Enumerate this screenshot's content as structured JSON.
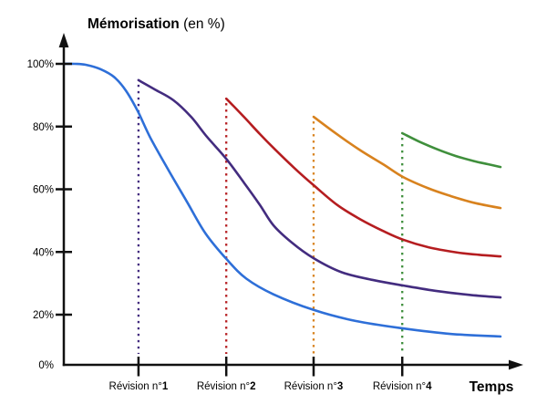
{
  "title": {
    "bold": "Mémorisation",
    "regular": " (en %)"
  },
  "x_axis_label": "Temps",
  "colors": {
    "axis": "#111111",
    "initial": "#2E6FD8",
    "revision1": "#432C7F",
    "revision2": "#B51D20",
    "revision3": "#D8821E",
    "revision4": "#3F8F3C"
  },
  "chart_data": {
    "type": "line",
    "title": "Mémorisation (en %)",
    "xlabel": "Temps",
    "ylabel": "Mémorisation (en %)",
    "ylim": [
      0,
      100
    ],
    "x_note": "axe du temps sans échelle numérique — abscisses normalisées de 0 à 100",
    "grid": false,
    "legend": "none",
    "y_ticks": [
      {
        "label": "100%",
        "value": 100
      },
      {
        "label": "80%",
        "value": 80
      },
      {
        "label": "60%",
        "value": 60
      },
      {
        "label": "40%",
        "value": 40
      },
      {
        "label": "20%",
        "value": 20
      },
      {
        "label": "0%",
        "value": 0
      }
    ],
    "x_ticks": [
      {
        "prefix": "Révision n°",
        "number": "1",
        "t": 17.1
      },
      {
        "prefix": "Révision n°",
        "number": "2",
        "t": 37.2
      },
      {
        "prefix": "Révision n°",
        "number": "3",
        "t": 57.2
      },
      {
        "prefix": "Révision n°",
        "number": "4",
        "t": 77.5
      }
    ],
    "series": [
      {
        "id": "initial-forgetting-curve",
        "color_key": "initial",
        "points": [
          [
            0,
            100
          ],
          [
            2.5,
            100
          ],
          [
            5,
            99.7
          ],
          [
            8.4,
            98.3
          ],
          [
            11.5,
            95.8
          ],
          [
            14.2,
            91.5
          ],
          [
            16.9,
            85
          ],
          [
            19.8,
            76.5
          ],
          [
            24,
            66
          ],
          [
            28.2,
            56
          ],
          [
            32.4,
            46
          ],
          [
            37.4,
            37.5
          ],
          [
            41.8,
            31.5
          ],
          [
            48,
            26.5
          ],
          [
            57.2,
            21.5
          ],
          [
            66.8,
            17.5
          ],
          [
            77.7,
            14.5
          ],
          [
            88.7,
            12.3
          ],
          [
            100,
            11.3
          ]
        ]
      },
      {
        "id": "after-revision-1",
        "color_key": "revision1",
        "points": [
          [
            17.1,
            94.8
          ],
          [
            20.9,
            91.8
          ],
          [
            25.1,
            88.4
          ],
          [
            29.2,
            83
          ],
          [
            32.8,
            76.7
          ],
          [
            37.2,
            69.7
          ],
          [
            41.3,
            62
          ],
          [
            44.9,
            55
          ],
          [
            48,
            48.5
          ],
          [
            52.2,
            43
          ],
          [
            57.2,
            38
          ],
          [
            63.7,
            33.5
          ],
          [
            71,
            31
          ],
          [
            77.7,
            29.3
          ],
          [
            85.6,
            27.5
          ],
          [
            92.9,
            26.3
          ],
          [
            100,
            25.5
          ]
        ]
      },
      {
        "id": "after-revision-2",
        "color_key": "revision2",
        "points": [
          [
            37.2,
            88.9
          ],
          [
            41.3,
            83
          ],
          [
            44.9,
            77.6
          ],
          [
            48,
            73.2
          ],
          [
            52.6,
            67
          ],
          [
            57.2,
            61.3
          ],
          [
            62.6,
            55
          ],
          [
            67.8,
            50.5
          ],
          [
            73.1,
            46.7
          ],
          [
            77.7,
            43.9
          ],
          [
            83.5,
            41.5
          ],
          [
            89.8,
            39.9
          ],
          [
            95,
            39.1
          ],
          [
            100,
            38.6
          ]
        ]
      },
      {
        "id": "after-revision-3",
        "color_key": "revision3",
        "points": [
          [
            57.2,
            83.1
          ],
          [
            62.6,
            77.5
          ],
          [
            67.8,
            72.5
          ],
          [
            73.1,
            68
          ],
          [
            77.7,
            63.9
          ],
          [
            83.5,
            60.3
          ],
          [
            88.7,
            57.8
          ],
          [
            93.9,
            55.7
          ],
          [
            100,
            54
          ]
        ]
      },
      {
        "id": "after-revision-4",
        "color_key": "revision4",
        "points": [
          [
            77.5,
            77.9
          ],
          [
            81.4,
            75.2
          ],
          [
            85.6,
            72.7
          ],
          [
            89.8,
            70.6
          ],
          [
            93.9,
            69
          ],
          [
            97.1,
            68
          ],
          [
            100,
            67.1
          ]
        ]
      }
    ],
    "revision_lines": [
      {
        "t": 17.1,
        "top": 94.8,
        "color_key": "revision1"
      },
      {
        "t": 37.2,
        "top": 88.9,
        "color_key": "revision2"
      },
      {
        "t": 57.2,
        "top": 83.1,
        "color_key": "revision3"
      },
      {
        "t": 77.5,
        "top": 77.9,
        "color_key": "revision4"
      }
    ]
  }
}
